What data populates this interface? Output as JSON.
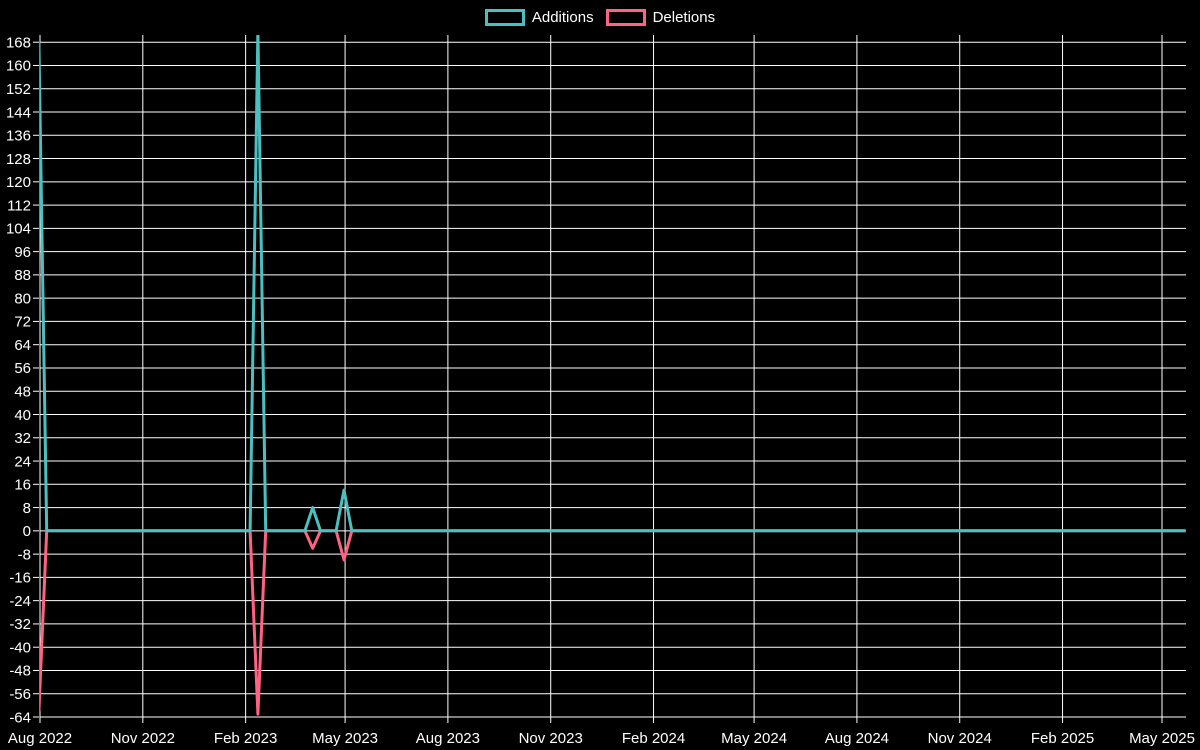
{
  "chart_data": {
    "type": "line",
    "title": "",
    "legend_position": "top",
    "background_color": "#000000",
    "grid_color": "#ffffff",
    "text_color": "#ffffff",
    "x_axis": {
      "type": "time",
      "ticks": [
        {
          "label": "Aug 2022",
          "date": "2022-08-01"
        },
        {
          "label": "Nov 2022",
          "date": "2022-11-01"
        },
        {
          "label": "Feb 2023",
          "date": "2023-02-01"
        },
        {
          "label": "May 2023",
          "date": "2023-05-01"
        },
        {
          "label": "Aug 2023",
          "date": "2023-08-01"
        },
        {
          "label": "Nov 2023",
          "date": "2023-11-01"
        },
        {
          "label": "Feb 2024",
          "date": "2024-02-01"
        },
        {
          "label": "May 2024",
          "date": "2024-05-01"
        },
        {
          "label": "Aug 2024",
          "date": "2024-08-01"
        },
        {
          "label": "Nov 2024",
          "date": "2024-11-01"
        },
        {
          "label": "Feb 2025",
          "date": "2025-02-01"
        },
        {
          "label": "May 2025",
          "date": "2025-05-01"
        }
      ]
    },
    "y_axis": {
      "min": -64,
      "max": 168,
      "step": 8
    },
    "series": [
      {
        "name": "Additions",
        "color": "#4bc0c0",
        "points": [
          [
            "2022-07-31",
            168
          ],
          [
            "2022-08-07",
            0
          ],
          [
            "2023-02-05",
            0
          ],
          [
            "2023-02-12",
            172
          ],
          [
            "2023-02-19",
            0
          ],
          [
            "2023-03-26",
            0
          ],
          [
            "2023-04-02",
            8
          ],
          [
            "2023-04-09",
            0
          ],
          [
            "2023-04-23",
            0
          ],
          [
            "2023-04-30",
            14
          ],
          [
            "2023-05-07",
            0
          ],
          [
            "2025-05-22",
            0
          ]
        ]
      },
      {
        "name": "Deletions",
        "color": "#ff6384",
        "points": [
          [
            "2022-07-31",
            -62
          ],
          [
            "2022-08-07",
            0
          ],
          [
            "2023-02-05",
            0
          ],
          [
            "2023-02-12",
            -63
          ],
          [
            "2023-02-19",
            0
          ],
          [
            "2023-03-26",
            0
          ],
          [
            "2023-04-02",
            -6
          ],
          [
            "2023-04-09",
            0
          ],
          [
            "2023-04-23",
            0
          ],
          [
            "2023-04-30",
            -10
          ],
          [
            "2023-05-07",
            0
          ],
          [
            "2025-05-22",
            0
          ]
        ]
      }
    ]
  }
}
